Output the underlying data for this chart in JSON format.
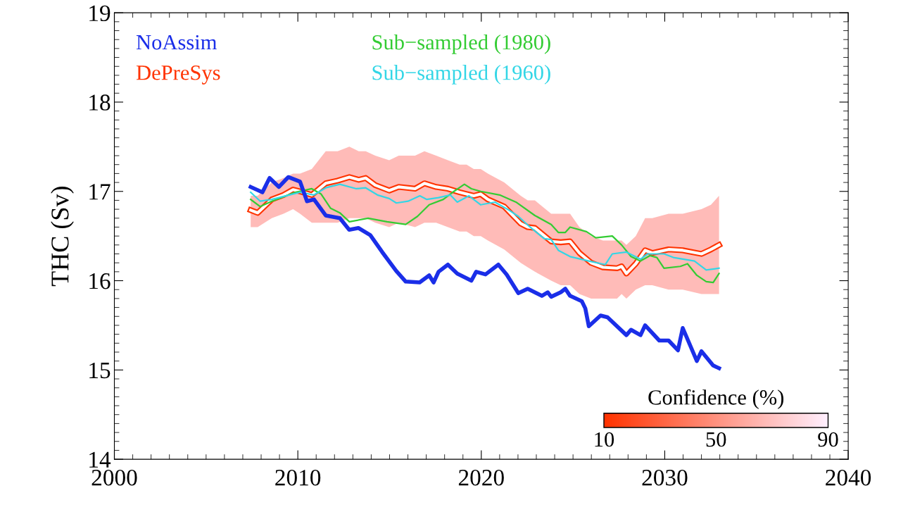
{
  "chart_data": {
    "type": "line",
    "ylabel": "THC (Sv)",
    "xlim": [
      2000,
      2040
    ],
    "xticks": [
      2000,
      2010,
      2020,
      2030,
      2040
    ],
    "ylim": [
      14,
      19
    ],
    "yticks": [
      14,
      15,
      16,
      17,
      18,
      19
    ],
    "grid": false,
    "legend": "top left",
    "annotations": [
      "Confidence (%)",
      "10",
      "50",
      "90"
    ],
    "series": [
      {
        "name": "NoAssim",
        "color": "#1a2ee8",
        "x": [
          2007.43,
          2008.07,
          2008.46,
          2008.97,
          2009.48,
          2010.12,
          2010.5,
          2010.88,
          2011.52,
          2012.29,
          2012.8,
          2013.3,
          2013.95,
          2014.6,
          2015.36,
          2015.88,
          2016.64,
          2017.16,
          2017.4,
          2017.67,
          2018.18,
          2018.69,
          2019.46,
          2019.72,
          2020.23,
          2020.93,
          2021.38,
          2022.02,
          2022.53,
          2023.3,
          2023.62,
          2023.81,
          2024.33,
          2024.58,
          2024.84,
          2025.48,
          2025.67,
          2025.86,
          2026.5,
          2026.88,
          2027.91,
          2028.16,
          2028.68,
          2028.93,
          2029.7,
          2030.21,
          2030.72,
          2030.98,
          2031.75,
          2032.0,
          2032.64,
          2032.96
        ],
        "values": [
          17.05,
          16.99,
          17.15,
          17.05,
          17.16,
          17.11,
          16.89,
          16.91,
          16.73,
          16.7,
          16.57,
          16.59,
          16.51,
          16.32,
          16.11,
          15.99,
          15.98,
          16.06,
          15.98,
          16.1,
          16.18,
          16.08,
          16.0,
          16.1,
          16.07,
          16.18,
          16.07,
          15.86,
          15.91,
          15.83,
          15.87,
          15.82,
          15.87,
          15.91,
          15.83,
          15.77,
          15.69,
          15.49,
          15.61,
          15.59,
          15.39,
          15.45,
          15.39,
          15.5,
          15.33,
          15.33,
          15.22,
          15.47,
          15.1,
          15.21,
          15.05,
          15.02
        ]
      },
      {
        "name": "DePreSys",
        "color": "#ff3300",
        "x": [
          2007.43,
          2007.81,
          2008.58,
          2009.22,
          2009.74,
          2010.12,
          2010.76,
          2011.52,
          2012.17,
          2012.81,
          2013.32,
          2013.7,
          2014.22,
          2014.98,
          2015.5,
          2016.39,
          2016.9,
          2017.54,
          2018.18,
          2018.82,
          2019.2,
          2019.59,
          2019.97,
          2020.36,
          2021.25,
          2022.15,
          2022.53,
          2022.92,
          2023.81,
          2024.33,
          2024.84,
          2025.35,
          2025.99,
          2026.63,
          2027.4,
          2027.65,
          2027.91,
          2028.42,
          2028.93,
          2029.32,
          2030.21,
          2030.98,
          2032.0,
          2032.52,
          2032.96
        ],
        "values": [
          16.79,
          16.76,
          16.91,
          16.96,
          17.02,
          17.0,
          16.96,
          17.09,
          17.12,
          17.16,
          17.13,
          17.15,
          17.07,
          17.01,
          17.05,
          17.03,
          17.09,
          17.05,
          17.03,
          16.99,
          16.97,
          16.95,
          16.97,
          16.91,
          16.83,
          16.64,
          16.6,
          16.59,
          16.44,
          16.43,
          16.44,
          16.31,
          16.2,
          16.15,
          16.14,
          16.16,
          16.08,
          16.19,
          16.34,
          16.31,
          16.35,
          16.34,
          16.3,
          16.35,
          16.4
        ],
        "upper": [
          16.95,
          16.95,
          17.1,
          17.15,
          17.2,
          17.2,
          17.25,
          17.45,
          17.45,
          17.5,
          17.45,
          17.45,
          17.4,
          17.35,
          17.4,
          17.4,
          17.45,
          17.4,
          17.35,
          17.3,
          17.3,
          17.25,
          17.25,
          17.2,
          17.1,
          16.95,
          16.9,
          16.9,
          16.75,
          16.75,
          16.75,
          16.6,
          16.5,
          16.45,
          16.45,
          16.45,
          16.4,
          16.5,
          16.7,
          16.7,
          16.75,
          16.75,
          16.8,
          16.85,
          16.95
        ],
        "lower": [
          16.6,
          16.6,
          16.7,
          16.75,
          16.8,
          16.75,
          16.65,
          16.65,
          16.65,
          16.7,
          16.7,
          16.7,
          16.65,
          16.6,
          16.65,
          16.6,
          16.65,
          16.65,
          16.6,
          16.55,
          16.55,
          16.5,
          16.5,
          16.45,
          16.35,
          16.2,
          16.15,
          16.1,
          16.0,
          15.95,
          15.95,
          15.85,
          15.8,
          15.8,
          15.8,
          15.85,
          15.8,
          15.9,
          15.95,
          15.95,
          15.9,
          15.9,
          15.85,
          15.85,
          15.85
        ]
      },
      {
        "name": "Sub−sampled (1980)",
        "color": "#33cc33",
        "x": [
          2007.43,
          2007.95,
          2008.58,
          2009.35,
          2009.86,
          2010.76,
          2011.27,
          2011.79,
          2012.29,
          2012.81,
          2013.83,
          2014.86,
          2015.88,
          2016.52,
          2017.16,
          2017.93,
          2018.44,
          2019.08,
          2019.46,
          2019.97,
          2021.0,
          2021.89,
          2022.92,
          2023.81,
          2024.2,
          2024.58,
          2024.84,
          2025.73,
          2026.24,
          2027.14,
          2027.65,
          2028.16,
          2028.68,
          2029.19,
          2029.57,
          2029.96,
          2030.85,
          2031.24,
          2031.75,
          2032.26,
          2032.64,
          2032.96
        ],
        "values": [
          16.91,
          16.83,
          16.89,
          16.95,
          16.99,
          17.03,
          16.97,
          16.81,
          16.76,
          16.66,
          16.7,
          16.66,
          16.63,
          16.72,
          16.85,
          16.91,
          16.99,
          17.08,
          17.03,
          17.0,
          16.96,
          16.88,
          16.73,
          16.63,
          16.54,
          16.54,
          16.6,
          16.55,
          16.48,
          16.5,
          16.4,
          16.27,
          16.22,
          16.28,
          16.26,
          16.14,
          16.16,
          16.19,
          16.06,
          15.99,
          15.98,
          16.08
        ]
      },
      {
        "name": "Sub−sampled (1960)",
        "color": "#33d6e6",
        "x": [
          2007.43,
          2007.95,
          2008.58,
          2009.35,
          2010.12,
          2010.88,
          2011.52,
          2012.29,
          2013.19,
          2013.7,
          2014.34,
          2014.98,
          2015.37,
          2016.01,
          2016.65,
          2017.03,
          2017.67,
          2018.31,
          2018.69,
          2019.33,
          2019.97,
          2020.74,
          2021.51,
          2022.02,
          2022.66,
          2023.43,
          2023.81,
          2024.2,
          2024.84,
          2025.86,
          2026.76,
          2027.14,
          2027.91,
          2028.68,
          2029.06,
          2029.96,
          2030.47,
          2031.62,
          2032.26,
          2032.96
        ],
        "values": [
          16.99,
          16.89,
          16.91,
          16.95,
          16.99,
          16.96,
          17.04,
          17.08,
          17.03,
          17.04,
          16.96,
          16.92,
          16.87,
          16.89,
          16.95,
          16.91,
          16.93,
          16.96,
          16.88,
          16.95,
          16.85,
          16.88,
          16.79,
          16.72,
          16.6,
          16.47,
          16.46,
          16.34,
          16.27,
          16.22,
          16.18,
          16.3,
          16.32,
          16.24,
          16.3,
          16.3,
          16.26,
          16.22,
          16.12,
          16.14
        ]
      }
    ]
  }
}
